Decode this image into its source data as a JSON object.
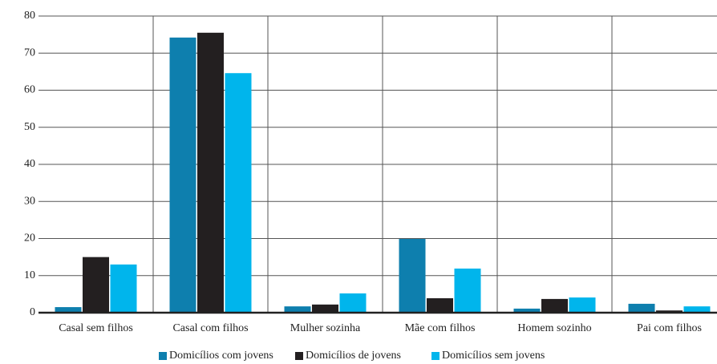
{
  "chart_data": {
    "type": "bar",
    "categories": [
      "Casal sem filhos",
      "Casal com filhos",
      "Mulher sozinha",
      "Mãe com filhos",
      "Homem sozinho",
      "Pai com filhos"
    ],
    "series": [
      {
        "name": "Domicílios com jovens",
        "color": "#0e7fae",
        "values": [
          1.5,
          74.2,
          1.7,
          19.9,
          1.1,
          2.4
        ]
      },
      {
        "name": "Domicílios de jovens",
        "color": "#231f20",
        "values": [
          15,
          75.5,
          2.2,
          3.9,
          3.7,
          0.6
        ]
      },
      {
        "name": "Domicílios sem jovens",
        "color": "#00b5ec",
        "values": [
          13,
          64.6,
          5.2,
          11.9,
          4.1,
          1.7
        ]
      }
    ],
    "ylim": [
      0,
      80
    ],
    "yticks": [
      0,
      10,
      20,
      30,
      40,
      50,
      60,
      70,
      80
    ],
    "grid": true,
    "legend": "bottom"
  }
}
